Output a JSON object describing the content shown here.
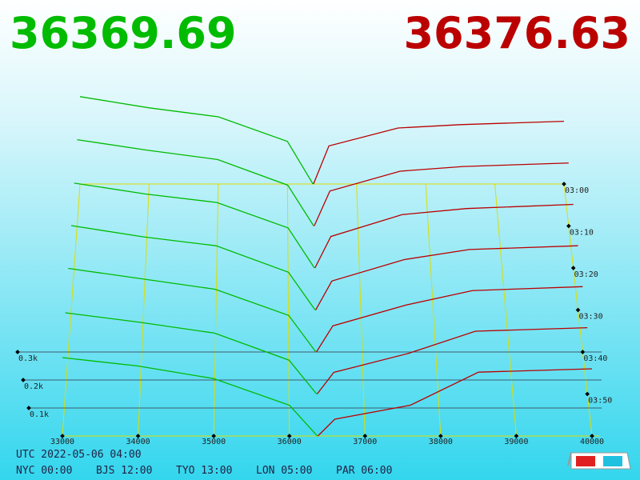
{
  "chart_data": {
    "type": "depth3d",
    "bid_price": 36369.69,
    "ask_price": 36376.63,
    "bid_color": "#00bb00",
    "ask_color": "#bb0000",
    "xlim": [
      33000,
      40000
    ],
    "xticks": [
      33000,
      34000,
      35000,
      36000,
      37000,
      38000,
      39000,
      40000
    ],
    "ylim": [
      0,
      400
    ],
    "yticks": [
      {
        "value": 100,
        "label": "0.1k"
      },
      {
        "value": 200,
        "label": "0.2k"
      },
      {
        "value": 300,
        "label": "0.3k"
      }
    ],
    "zlim": [
      180,
      240
    ],
    "zticks": [
      {
        "value": 180,
        "label": "03:00"
      },
      {
        "value": 190,
        "label": "03:10"
      },
      {
        "value": 200,
        "label": "03:20"
      },
      {
        "value": 210,
        "label": "03:30"
      },
      {
        "value": 220,
        "label": "03:40"
      },
      {
        "value": 230,
        "label": "03:50"
      }
    ],
    "snapshot_times": [
      180,
      190,
      200,
      210,
      220,
      230,
      240
    ],
    "bid_prices": [
      33000,
      34000,
      35000,
      36000,
      36369.69
    ],
    "bid_depths": [
      [
        390,
        340,
        300,
        190,
        0
      ],
      [
        370,
        325,
        285,
        175,
        0
      ],
      [
        350,
        305,
        270,
        165,
        0
      ],
      [
        335,
        290,
        255,
        150,
        0
      ],
      [
        320,
        280,
        240,
        140,
        0
      ],
      [
        300,
        265,
        225,
        125,
        0
      ],
      [
        280,
        250,
        205,
        110,
        0
      ]
    ],
    "ask_prices": [
      36376.63,
      36600,
      37600,
      38500,
      40000
    ],
    "ask_depths": [
      [
        0,
        170,
        250,
        265,
        280
      ],
      [
        0,
        150,
        235,
        255,
        270
      ],
      [
        0,
        130,
        220,
        245,
        262
      ],
      [
        0,
        115,
        200,
        240,
        255
      ],
      [
        0,
        100,
        180,
        235,
        250
      ],
      [
        0,
        80,
        150,
        232,
        245
      ],
      [
        0,
        60,
        110,
        228,
        240
      ]
    ],
    "utc": "UTC 2022-05-06 04:00",
    "cities": [
      "NYC 00:00",
      "BJS 12:00",
      "TYO 13:00",
      "LON 05:00",
      "PAR 06:00"
    ]
  }
}
